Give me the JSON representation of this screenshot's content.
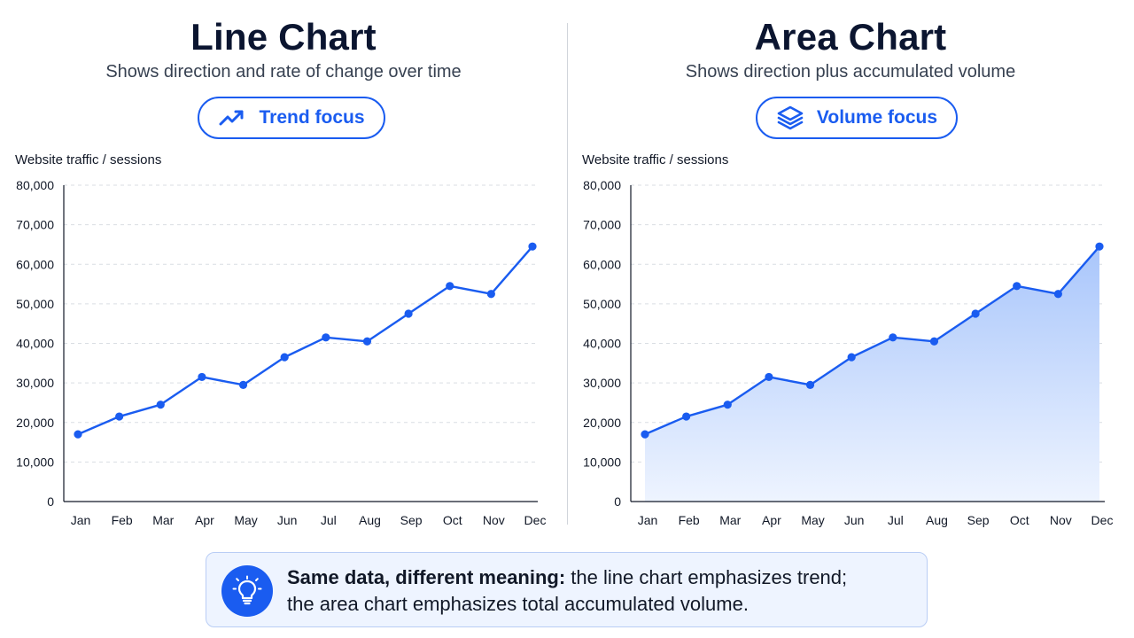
{
  "panels": [
    {
      "title": "Line Chart",
      "subtitle": "Shows direction and rate of change over time",
      "pill": {
        "label": "Trend focus",
        "icon": "trending-up-icon"
      }
    },
    {
      "title": "Area Chart",
      "subtitle": "Shows direction plus accumulated volume",
      "pill": {
        "label": "Volume focus",
        "icon": "layers-icon"
      }
    }
  ],
  "callout": {
    "icon": "lightbulb-icon",
    "bold": "Same data, different meaning:",
    "rest_line1": " the line chart emphasizes trend;",
    "rest_line2": "the area chart emphasizes total accumulated volume."
  },
  "colors": {
    "accent": "#1a5cf0",
    "area_top": "#a9c6fb",
    "area_bottom": "#eef4ff",
    "callout_bg": "#eef4ff"
  },
  "chart_data": [
    {
      "type": "line",
      "title": "Line Chart",
      "ylabel": "Website traffic / sessions",
      "categories": [
        "Jan",
        "Feb",
        "Mar",
        "Apr",
        "May",
        "Jun",
        "Jul",
        "Aug",
        "Sep",
        "Oct",
        "Nov",
        "Dec"
      ],
      "series": [
        {
          "values": [
            17000,
            21500,
            24500,
            31500,
            29500,
            36500,
            41500,
            40500,
            47500,
            54500,
            52500,
            64500
          ]
        }
      ],
      "ylim": [
        0,
        80000
      ],
      "yticks": [
        0,
        10000,
        20000,
        30000,
        40000,
        50000,
        60000,
        70000,
        80000
      ],
      "ytick_labels": [
        "0",
        "10,000",
        "20,000",
        "30,000",
        "40,000",
        "50,000",
        "60,000",
        "70,000",
        "80,000"
      ],
      "grid": true,
      "legend": "none"
    },
    {
      "type": "area",
      "title": "Area Chart",
      "ylabel": "Website traffic / sessions",
      "categories": [
        "Jan",
        "Feb",
        "Mar",
        "Apr",
        "May",
        "Jun",
        "Jul",
        "Aug",
        "Sep",
        "Oct",
        "Nov",
        "Dec"
      ],
      "series": [
        {
          "values": [
            17000,
            21500,
            24500,
            31500,
            29500,
            36500,
            41500,
            40500,
            47500,
            54500,
            52500,
            64500
          ]
        }
      ],
      "ylim": [
        0,
        80000
      ],
      "yticks": [
        0,
        10000,
        20000,
        30000,
        40000,
        50000,
        60000,
        70000,
        80000
      ],
      "ytick_labels": [
        "0",
        "10,000",
        "20,000",
        "30,000",
        "40,000",
        "50,000",
        "60,000",
        "70,000",
        "80,000"
      ],
      "grid": true,
      "legend": "none"
    }
  ]
}
